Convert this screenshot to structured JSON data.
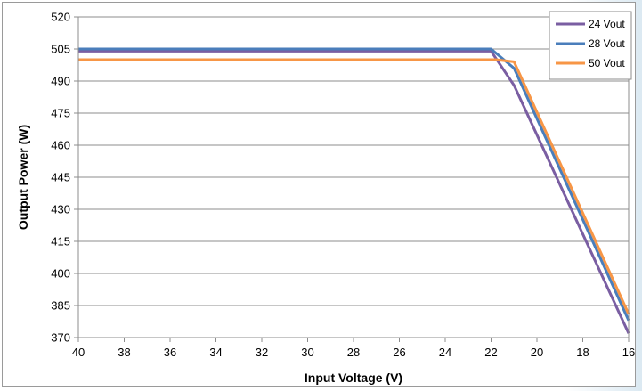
{
  "chart_data": {
    "type": "line",
    "title": "",
    "xlabel": "Input Voltage (V)",
    "ylabel": "Output Power (W)",
    "xlim": [
      40,
      16
    ],
    "x_reversed": true,
    "ylim": [
      370,
      520
    ],
    "x_ticks": [
      40,
      38,
      36,
      34,
      32,
      30,
      28,
      26,
      24,
      22,
      20,
      18,
      16
    ],
    "y_ticks": [
      370,
      385,
      400,
      415,
      430,
      445,
      460,
      475,
      490,
      505,
      520
    ],
    "grid": "horizontal",
    "legend_position": "top-right",
    "series": [
      {
        "name": "24 Vout",
        "color": "#7a5ea2",
        "points": [
          [
            40,
            504
          ],
          [
            22,
            504
          ],
          [
            21,
            488
          ],
          [
            16,
            372
          ]
        ]
      },
      {
        "name": "28 Vout",
        "color": "#4a7ebb",
        "points": [
          [
            40,
            505
          ],
          [
            22,
            505
          ],
          [
            21,
            496
          ],
          [
            16,
            378
          ]
        ]
      },
      {
        "name": "50 Vout",
        "color": "#f79646",
        "points": [
          [
            40,
            500
          ],
          [
            21.8,
            500
          ],
          [
            21,
            499
          ],
          [
            16,
            381
          ]
        ]
      }
    ]
  }
}
